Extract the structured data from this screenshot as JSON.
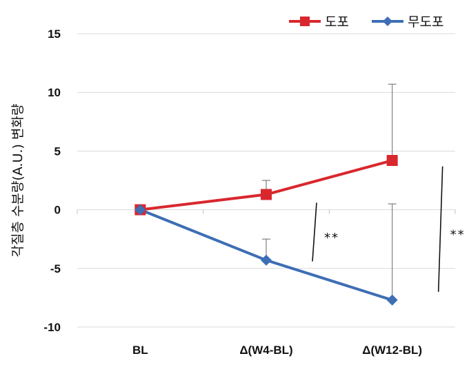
{
  "chart_data": {
    "type": "line",
    "categories": [
      "BL",
      "Δ(W4-BL)",
      "Δ(W12-BL)"
    ],
    "ylabel": "각질층 수분량(A.U.) 변화량",
    "ylim": [
      -10,
      15
    ],
    "yticks": [
      15,
      10,
      5,
      0,
      -5,
      -10
    ],
    "ytick_labels": [
      "15",
      "10",
      "5",
      "0",
      "-5",
      "-10"
    ],
    "grid": true,
    "legend_position": "top-right",
    "series": [
      {
        "name": "도포",
        "color": "#d9272e",
        "marker": "square-icon",
        "values": [
          0,
          1.3,
          4.2
        ],
        "error_upper": [
          0,
          1.2,
          6.5
        ]
      },
      {
        "name": "무도포",
        "color": "#3e6eb4",
        "marker": "diamond-icon",
        "values": [
          0,
          -4.3,
          -7.7
        ],
        "error_upper": [
          0,
          1.8,
          8.2
        ]
      }
    ],
    "annotations": [
      {
        "text": "**",
        "category": "Δ(W4-BL)",
        "y_from": 0.6,
        "y_to": -4.4
      },
      {
        "text": "**",
        "category": "Δ(W12-BL)",
        "y_from": 3.7,
        "y_to": -7.0
      }
    ]
  }
}
